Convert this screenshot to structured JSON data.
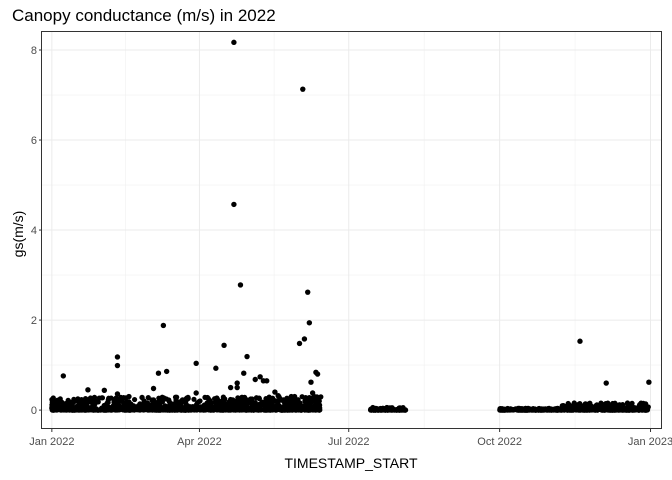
{
  "chart_data": {
    "type": "scatter",
    "title": "Canopy conductance (m/s) in 2022",
    "xlabel": "TIMESTAMP_START",
    "ylabel": "gs(m/s)",
    "x_ticks": [
      "2022-01-01",
      "2022-04-01",
      "2022-07-01",
      "2022-10-01",
      "2023-01-01"
    ],
    "x_tick_labels": [
      "Jan 2022",
      "Apr 2022",
      "Jul 2022",
      "Oct 2022",
      "Jan 2023"
    ],
    "y_ticks": [
      0,
      2,
      4,
      6,
      8
    ],
    "xlim": [
      "2021-12-26",
      "2023-01-08"
    ],
    "ylim": [
      -0.42,
      8.4
    ],
    "grid": true,
    "point_color": "#000000",
    "series": [
      {
        "x": [
          "2022-01-08",
          "2022-01-23",
          "2022-01-23",
          "2022-01-27",
          "2022-02-02",
          "2022-02-10",
          "2022-02-10",
          "2022-02-10",
          "2022-02-12",
          "2022-02-17",
          "2022-02-17",
          "2022-02-25",
          "2022-03-04",
          "2022-03-07",
          "2022-03-10",
          "2022-03-12",
          "2022-03-25",
          "2022-03-30",
          "2022-03-30",
          "2022-04-11",
          "2022-04-16",
          "2022-04-20",
          "2022-04-22",
          "2022-04-22",
          "2022-04-24",
          "2022-04-24",
          "2022-04-24",
          "2022-04-26",
          "2022-04-28",
          "2022-04-30",
          "2022-05-05",
          "2022-05-08",
          "2022-05-10",
          "2022-05-12",
          "2022-05-17",
          "2022-05-19",
          "2022-05-27",
          "2022-05-29",
          "2022-06-01",
          "2022-06-03",
          "2022-06-04",
          "2022-06-06",
          "2022-06-07",
          "2022-06-08",
          "2022-06-09",
          "2022-06-10",
          "2022-06-11",
          "2022-06-12",
          "2022-06-13",
          "2022-11-19",
          "2022-12-05",
          "2022-12-31"
        ],
        "y": [
          0.76,
          0.45,
          0.22,
          0.28,
          0.44,
          1.18,
          0.99,
          0.36,
          0.28,
          0.3,
          0.18,
          0.28,
          0.48,
          0.82,
          1.88,
          0.86,
          0.28,
          1.04,
          0.38,
          0.93,
          1.44,
          0.5,
          8.17,
          4.57,
          0.5,
          0.2,
          0.6,
          2.78,
          0.82,
          1.19,
          0.68,
          0.74,
          0.65,
          0.65,
          0.4,
          0.32,
          0.3,
          0.3,
          1.48,
          7.13,
          1.58,
          2.62,
          1.94,
          0.62,
          0.38,
          0.3,
          0.84,
          0.8,
          0.2,
          1.53,
          0.6,
          0.62
        ]
      }
    ],
    "dense_ranges": [
      {
        "from": "2022-01-01",
        "to": "2022-06-14",
        "y_max": 0.3
      },
      {
        "from": "2022-07-14",
        "to": "2022-08-05",
        "y_max": 0.06
      },
      {
        "from": "2022-10-01",
        "to": "2022-11-08",
        "y_max": 0.04
      },
      {
        "from": "2022-11-08",
        "to": "2022-12-31",
        "y_max": 0.16
      }
    ]
  }
}
